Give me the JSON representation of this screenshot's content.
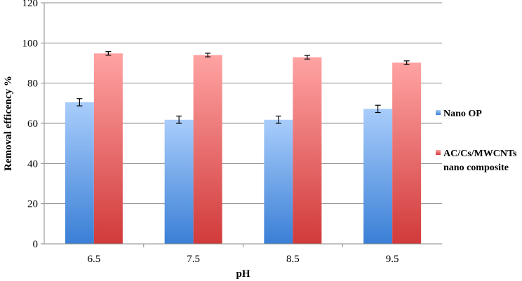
{
  "chart_data": {
    "type": "bar",
    "title": "",
    "xlabel": "pH",
    "ylabel": "Removal efficency %",
    "categories": [
      "6.5",
      "7.5",
      "8.5",
      "9.5"
    ],
    "ylim": [
      0,
      120
    ],
    "yticks": [
      0,
      20,
      40,
      60,
      80,
      100,
      120
    ],
    "grid": true,
    "legend_position": "right",
    "series": [
      {
        "name": "Nano OP",
        "values": [
          70.5,
          61.8,
          61.8,
          67.2
        ],
        "errors": [
          1.8,
          1.8,
          1.8,
          1.8
        ],
        "color_top": "#a9cdfb",
        "color_bottom": "#3a7fd6"
      },
      {
        "name_lines": [
          "AC/Cs/MWCNTs",
          "nano composite"
        ],
        "values": [
          94.8,
          94.0,
          92.9,
          90.2
        ],
        "errors": [
          0.9,
          0.9,
          0.9,
          0.9
        ],
        "color_top": "#ffa3a3",
        "color_bottom": "#d13a3a"
      }
    ]
  }
}
